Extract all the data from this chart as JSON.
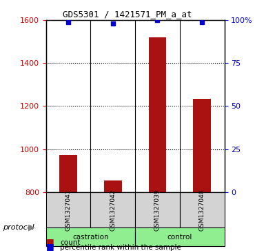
{
  "title": "GDS5301 / 1421571_PM_a_at",
  "samples": [
    "GSM1327041",
    "GSM1327042",
    "GSM1327039",
    "GSM1327040"
  ],
  "groups": [
    "castration",
    "castration",
    "control",
    "control"
  ],
  "group_colors": {
    "castration": "#90ee90",
    "control": "#90ee90"
  },
  "counts": [
    975,
    855,
    1520,
    1235
  ],
  "percentile_ranks": [
    99,
    98,
    100,
    99
  ],
  "ylim_left": [
    800,
    1600
  ],
  "ylim_right": [
    0,
    100
  ],
  "yticks_left": [
    800,
    1000,
    1200,
    1400,
    1600
  ],
  "yticks_right": [
    0,
    25,
    50,
    75,
    100
  ],
  "bar_color": "#aa1111",
  "dot_color": "#0000cc",
  "bar_bottom": 800,
  "grid_lines": [
    1000,
    1200,
    1400
  ],
  "legend_count_color": "#aa1111",
  "legend_dot_color": "#0000cc",
  "left_label_color": "#cc0000",
  "right_label_color": "#0000cc"
}
